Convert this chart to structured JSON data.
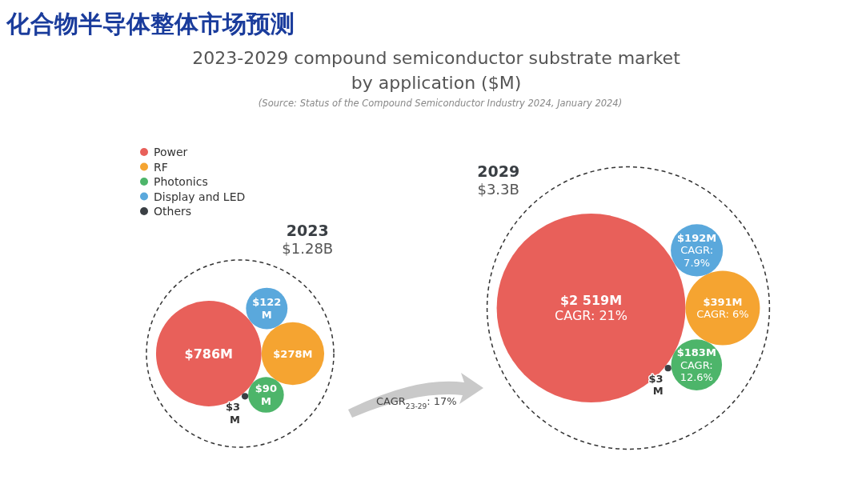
{
  "chart_data": {
    "type": "other",
    "title": "2023-2029 compound semiconductor substrate market\nby application ($M)",
    "legend": "top left",
    "categories": [
      "2023",
      "2029"
    ],
    "totals": [
      "$1.28B",
      "$3.3B"
    ],
    "series": [
      {
        "name": "Power",
        "color": "#e8605a",
        "values": [
          786,
          2519
        ],
        "value_labels": [
          "$786M",
          "$2 519M"
        ]
      },
      {
        "name": "RF",
        "color": "#f5a431",
        "values": [
          278,
          391
        ],
        "value_labels": [
          "$278M",
          "$391M"
        ]
      },
      {
        "name": "Photonics",
        "color": "#4db56a",
        "values": [
          90,
          183
        ],
        "value_labels": [
          "$90\nM",
          "$183M"
        ]
      },
      {
        "name": "Display and LED",
        "color": "#5aa8dc",
        "values": [
          122,
          192
        ],
        "value_labels": [
          "$122\nM",
          "$192M"
        ]
      },
      {
        "name": "Others",
        "color": "#3a3f44",
        "values": [
          3,
          3
        ],
        "value_labels": [
          "$3\nM",
          "$3\nM"
        ]
      }
    ],
    "annotations": [
      "化合物半导体整体市场预测",
      "(Source: Status of the Compound Semiconductor Industry 2024, January 2024)",
      "CAGR$_{23-29}$: 17%",
      "CAGR: 21%",
      "CAGR: 6%",
      "CAGR:\n12.6%",
      "CAGR:\n7.9%"
    ]
  }
}
